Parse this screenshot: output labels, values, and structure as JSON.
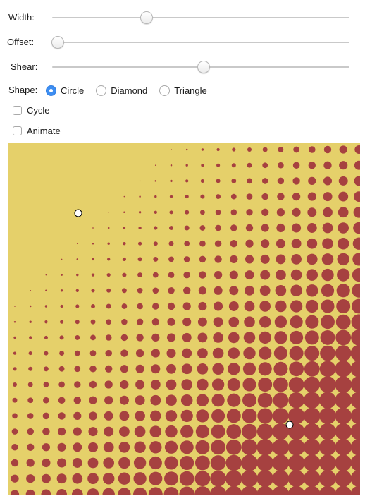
{
  "controls": {
    "width": {
      "label": "Width:",
      "value": 0.31
    },
    "offset": {
      "label": "Offset:",
      "value": 0.0
    },
    "shear": {
      "label": "Shear:",
      "value": 0.51
    }
  },
  "shape": {
    "label": "Shape:",
    "options": [
      "Circle",
      "Diamond",
      "Triangle"
    ],
    "selected": "Circle"
  },
  "checkboxes": {
    "cycle": {
      "label": "Cycle",
      "checked": false
    },
    "animate": {
      "label": "Animate",
      "checked": false
    }
  },
  "canvas": {
    "background_color": "#e5d06a",
    "dot_color": "#a64140",
    "handle_color": "#ffffff"
  }
}
